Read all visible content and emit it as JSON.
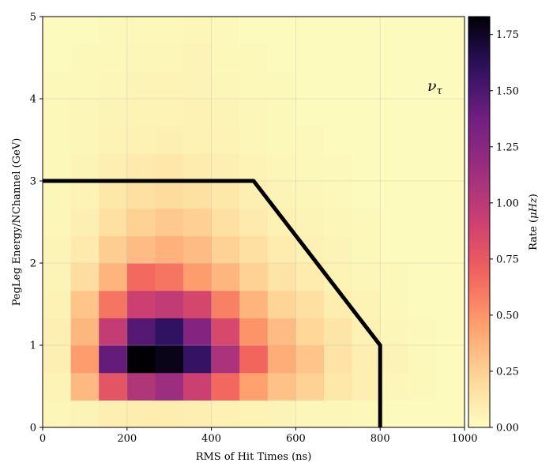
{
  "chart_data": {
    "type": "heatmap",
    "xlabel": "RMS of Hit Times (ns)",
    "ylabel": "PegLeg Energy/NChannel (GeV)",
    "xlim": [
      0,
      1000
    ],
    "ylim": [
      0,
      5
    ],
    "x_ticks": [
      "0",
      "200",
      "400",
      "600",
      "800",
      "1000"
    ],
    "y_ticks": [
      "0",
      "1",
      "2",
      "3",
      "4",
      "5"
    ],
    "grid": true,
    "colormap": "magma_r",
    "colorbar": {
      "label_main": "Rate (",
      "label_unit": "μHz",
      "label_close": ")",
      "min": 0.0,
      "max": 1.83,
      "ticks": [
        "0.00",
        "0.25",
        "0.50",
        "0.75",
        "1.00",
        "1.25",
        "1.50",
        "1.75"
      ]
    },
    "annotation": {
      "symbol": "ν",
      "subscript": "τ"
    },
    "bins": {
      "x_edges": [
        0,
        66.67,
        133.33,
        200,
        266.67,
        333.33,
        400,
        466.67,
        533.33,
        600,
        666.67,
        733.33,
        800,
        866.67,
        933.33,
        1000
      ],
      "y_edges": [
        0,
        0.333,
        0.667,
        1.0,
        1.333,
        1.667,
        2.0,
        2.333,
        2.667,
        3.0,
        3.333,
        3.667,
        4.0,
        4.333,
        4.667,
        5.0
      ],
      "values_by_row_bottom_to_top": [
        [
          0.04,
          0.05,
          0.08,
          0.09,
          0.09,
          0.08,
          0.07,
          0.06,
          0.05,
          0.04,
          0.04,
          0.03,
          0.02,
          0.02,
          0.02
        ],
        [
          0.06,
          0.35,
          0.78,
          1.05,
          1.15,
          0.92,
          0.67,
          0.45,
          0.31,
          0.24,
          0.13,
          0.08,
          0.04,
          0.03,
          0.02
        ],
        [
          0.08,
          0.47,
          1.42,
          1.83,
          1.78,
          1.58,
          1.08,
          0.68,
          0.4,
          0.3,
          0.15,
          0.08,
          0.05,
          0.03,
          0.02
        ],
        [
          0.08,
          0.36,
          0.96,
          1.47,
          1.6,
          1.28,
          0.86,
          0.5,
          0.34,
          0.22,
          0.14,
          0.07,
          0.04,
          0.03,
          0.02
        ],
        [
          0.07,
          0.3,
          0.62,
          0.92,
          0.97,
          0.87,
          0.57,
          0.37,
          0.23,
          0.17,
          0.09,
          0.06,
          0.03,
          0.02,
          0.02
        ],
        [
          0.05,
          0.18,
          0.37,
          0.66,
          0.62,
          0.47,
          0.36,
          0.24,
          0.15,
          0.1,
          0.06,
          0.04,
          0.03,
          0.02,
          0.02
        ],
        [
          0.05,
          0.11,
          0.26,
          0.34,
          0.38,
          0.34,
          0.24,
          0.17,
          0.1,
          0.07,
          0.05,
          0.03,
          0.02,
          0.02,
          0.02
        ],
        [
          0.04,
          0.08,
          0.17,
          0.24,
          0.28,
          0.25,
          0.17,
          0.11,
          0.07,
          0.05,
          0.04,
          0.03,
          0.02,
          0.02,
          0.02
        ],
        [
          0.04,
          0.06,
          0.12,
          0.17,
          0.19,
          0.16,
          0.12,
          0.08,
          0.05,
          0.04,
          0.03,
          0.02,
          0.02,
          0.02,
          0.02
        ],
        [
          0.03,
          0.05,
          0.08,
          0.11,
          0.12,
          0.1,
          0.08,
          0.06,
          0.04,
          0.03,
          0.03,
          0.02,
          0.02,
          0.02,
          0.02
        ],
        [
          0.03,
          0.04,
          0.06,
          0.07,
          0.08,
          0.07,
          0.06,
          0.04,
          0.03,
          0.03,
          0.02,
          0.02,
          0.02,
          0.02,
          0.02
        ],
        [
          0.03,
          0.04,
          0.05,
          0.06,
          0.06,
          0.07,
          0.05,
          0.04,
          0.03,
          0.02,
          0.02,
          0.02,
          0.02,
          0.02,
          0.02
        ],
        [
          0.03,
          0.03,
          0.04,
          0.05,
          0.06,
          0.05,
          0.04,
          0.03,
          0.03,
          0.02,
          0.02,
          0.02,
          0.02,
          0.02,
          0.02
        ],
        [
          0.02,
          0.03,
          0.03,
          0.04,
          0.04,
          0.05,
          0.03,
          0.03,
          0.02,
          0.02,
          0.02,
          0.02,
          0.02,
          0.02,
          0.02
        ],
        [
          0.02,
          0.02,
          0.03,
          0.03,
          0.03,
          0.04,
          0.03,
          0.02,
          0.02,
          0.02,
          0.02,
          0.02,
          0.02,
          0.02,
          0.02
        ]
      ]
    },
    "cut_line": {
      "points": [
        [
          0,
          3.0
        ],
        [
          500,
          3.0
        ],
        [
          800,
          1.0
        ],
        [
          800,
          0.0
        ]
      ],
      "color": "#000000"
    }
  }
}
